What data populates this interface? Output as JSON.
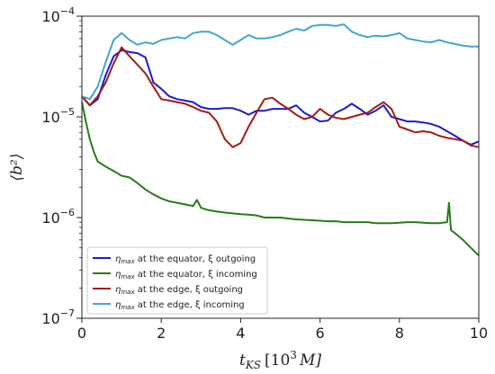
{
  "chart_data": {
    "type": "line",
    "title": "",
    "xlabel": "t_KS [10^3 M]",
    "ylabel": "⟨b²⟩",
    "xlim": [
      0,
      10
    ],
    "ylim": [
      1e-07,
      0.0001
    ],
    "yscale": "log",
    "x_ticks": [
      0,
      2,
      4,
      6,
      8,
      10
    ],
    "y_ticks": [
      {
        "value": 1e-07,
        "base": "10",
        "exp": "−7"
      },
      {
        "value": 1e-06,
        "base": "10",
        "exp": "−6"
      },
      {
        "value": 1e-05,
        "base": "10",
        "exp": "−5"
      },
      {
        "value": 0.0001,
        "base": "10",
        "exp": "−4"
      }
    ],
    "grid": false,
    "legend_position": "lower-left",
    "series": [
      {
        "name": "η_max at the equator, ξ outgoing",
        "color": "#1c1ccc",
        "x": [
          0,
          0.2,
          0.4,
          0.6,
          0.8,
          1.0,
          1.2,
          1.4,
          1.6,
          1.8,
          2.0,
          2.2,
          2.4,
          2.6,
          2.8,
          3.0,
          3.2,
          3.4,
          3.6,
          3.8,
          4.0,
          4.2,
          4.4,
          4.6,
          4.8,
          5.0,
          5.2,
          5.4,
          5.6,
          5.8,
          6.0,
          6.2,
          6.4,
          6.6,
          6.8,
          7.0,
          7.2,
          7.4,
          7.6,
          7.8,
          8.0,
          8.2,
          8.4,
          8.6,
          8.8,
          9.0,
          9.2,
          9.4,
          9.6,
          9.8,
          10.0
        ],
        "y": [
          1.6e-05,
          1.3e-05,
          1.5e-05,
          2.6e-05,
          4e-05,
          4.6e-05,
          4.4e-05,
          4.3e-05,
          3.9e-05,
          2.2e-05,
          1.9e-05,
          1.6e-05,
          1.5e-05,
          1.45e-05,
          1.4e-05,
          1.25e-05,
          1.2e-05,
          1.2e-05,
          1.22e-05,
          1.22e-05,
          1.15e-05,
          1.05e-05,
          1.15e-05,
          1.15e-05,
          1.2e-05,
          1.2e-05,
          1.2e-05,
          1.3e-05,
          1.1e-05,
          1e-05,
          9e-06,
          9.2e-06,
          1.1e-05,
          1.2e-05,
          1.35e-05,
          1.2e-05,
          1.05e-05,
          1.15e-05,
          1.3e-05,
          1e-05,
          9.5e-06,
          9e-06,
          9e-06,
          8.8e-06,
          8.5e-06,
          8e-06,
          7.2e-06,
          6.5e-06,
          5.8e-06,
          5.3e-06,
          5.7e-06
        ]
      },
      {
        "name": "η_max at the equator, ξ incoming",
        "color": "#2a7a1a",
        "x": [
          0,
          0.1,
          0.2,
          0.3,
          0.4,
          0.6,
          0.8,
          1.0,
          1.2,
          1.4,
          1.6,
          1.8,
          2.0,
          2.2,
          2.4,
          2.6,
          2.8,
          2.9,
          3.0,
          3.2,
          3.4,
          3.6,
          3.8,
          4.0,
          4.2,
          4.4,
          4.6,
          4.8,
          5.0,
          5.2,
          5.4,
          5.6,
          5.8,
          6.0,
          6.2,
          6.4,
          6.6,
          6.8,
          7.0,
          7.2,
          7.4,
          7.6,
          7.8,
          8.0,
          8.2,
          8.4,
          8.6,
          8.8,
          9.0,
          9.2,
          9.25,
          9.3,
          9.4,
          9.5,
          9.6,
          9.8,
          10.0
        ],
        "y": [
          1.4e-05,
          9e-06,
          6e-06,
          4.5e-06,
          3.6e-06,
          3.2e-06,
          2.9e-06,
          2.6e-06,
          2.5e-06,
          2.2e-06,
          1.9e-06,
          1.7e-06,
          1.55e-06,
          1.45e-06,
          1.4e-06,
          1.35e-06,
          1.3e-06,
          1.5e-06,
          1.25e-06,
          1.18e-06,
          1.15e-06,
          1.12e-06,
          1.1e-06,
          1.08e-06,
          1.07e-06,
          1.05e-06,
          1e-06,
          1e-06,
          1e-06,
          9.8e-07,
          9.6e-07,
          9.5e-07,
          9.4e-07,
          9.3e-07,
          9.2e-07,
          9.2e-07,
          9e-07,
          9e-07,
          9e-07,
          9e-07,
          8.8e-07,
          8.8e-07,
          8.8e-07,
          8.9e-07,
          9e-07,
          9e-07,
          8.9e-07,
          8.8e-07,
          8.8e-07,
          9e-07,
          1.4e-06,
          7.5e-07,
          7e-07,
          6.5e-07,
          6e-07,
          5e-07,
          4.2e-07
        ]
      },
      {
        "name": "η_max at the edge, ξ outgoing",
        "color": "#a01c14",
        "x": [
          0,
          0.2,
          0.4,
          0.6,
          0.8,
          1.0,
          1.2,
          1.4,
          1.6,
          1.8,
          2.0,
          2.2,
          2.4,
          2.6,
          2.8,
          3.0,
          3.2,
          3.4,
          3.6,
          3.8,
          4.0,
          4.2,
          4.4,
          4.6,
          4.8,
          5.0,
          5.2,
          5.4,
          5.6,
          5.8,
          6.0,
          6.2,
          6.4,
          6.6,
          6.8,
          7.0,
          7.2,
          7.4,
          7.6,
          7.8,
          8.0,
          8.2,
          8.4,
          8.6,
          8.8,
          9.0,
          9.2,
          9.4,
          9.6,
          9.8,
          10.0
        ],
        "y": [
          1.6e-05,
          1.3e-05,
          1.6e-05,
          2.2e-05,
          3.4e-05,
          4.9e-05,
          4e-05,
          3.3e-05,
          2.7e-05,
          2e-05,
          1.5e-05,
          1.45e-05,
          1.4e-05,
          1.35e-05,
          1.25e-05,
          1.15e-05,
          1.1e-05,
          9e-06,
          6e-06,
          5e-06,
          5.5e-06,
          8e-06,
          1.1e-05,
          1.5e-05,
          1.55e-05,
          1.35e-05,
          1.2e-05,
          1.05e-05,
          9.5e-06,
          1e-05,
          1.2e-05,
          1.05e-05,
          9.8e-06,
          9.5e-06,
          1e-05,
          1.05e-05,
          1.1e-05,
          1.25e-05,
          1.4e-05,
          1.2e-05,
          8e-06,
          7.5e-06,
          7e-06,
          7.2e-06,
          7e-06,
          6.5e-06,
          6.2e-06,
          6e-06,
          5.8e-06,
          5.2e-06,
          5e-06
        ]
      },
      {
        "name": "η_max at the edge, ξ incoming",
        "color": "#42a5cf",
        "x": [
          0,
          0.2,
          0.4,
          0.6,
          0.8,
          1.0,
          1.2,
          1.4,
          1.6,
          1.8,
          2.0,
          2.2,
          2.4,
          2.6,
          2.8,
          3.0,
          3.2,
          3.4,
          3.6,
          3.8,
          4.0,
          4.2,
          4.4,
          4.6,
          4.8,
          5.0,
          5.2,
          5.4,
          5.6,
          5.8,
          6.0,
          6.2,
          6.4,
          6.6,
          6.8,
          7.0,
          7.2,
          7.4,
          7.6,
          7.8,
          8.0,
          8.2,
          8.4,
          8.6,
          8.8,
          9.0,
          9.2,
          9.4,
          9.6,
          9.8,
          10.0
        ],
        "y": [
          1.6e-05,
          1.5e-05,
          2e-05,
          3.5e-05,
          5.8e-05,
          6.8e-05,
          5.8e-05,
          5.2e-05,
          5.5e-05,
          5.3e-05,
          5.8e-05,
          6e-05,
          6.2e-05,
          6e-05,
          6.8e-05,
          7e-05,
          7e-05,
          6.5e-05,
          5.8e-05,
          5.2e-05,
          5.8e-05,
          6.5e-05,
          6e-05,
          6e-05,
          6.2e-05,
          6.5e-05,
          7e-05,
          7.5e-05,
          7.2e-05,
          8e-05,
          8.2e-05,
          8.2e-05,
          8e-05,
          8.3e-05,
          7e-05,
          6.5e-05,
          6.2e-05,
          6.4e-05,
          6.3e-05,
          6.5e-05,
          6.8e-05,
          6e-05,
          5.8e-05,
          5.6e-05,
          5.5e-05,
          5.8e-05,
          5.5e-05,
          5.3e-05,
          5.1e-05,
          5e-05,
          5e-05
        ]
      }
    ]
  },
  "axes": {
    "x_title_main": "t",
    "x_title_sub": "KS",
    "x_title_bracket_open": "[10",
    "x_title_exp": "3",
    "x_title_unit": "M]",
    "y_title": "⟨b²⟩"
  },
  "legend": {
    "prefix_main": "η",
    "prefix_sub": "max",
    "items": [
      {
        "text": " at the equator, ξ outgoing",
        "color": "#1c1ccc"
      },
      {
        "text": " at the equator, ξ incoming",
        "color": "#2a7a1a"
      },
      {
        "text": " at the edge, ξ outgoing",
        "color": "#a01c14"
      },
      {
        "text": " at the edge, ξ incoming",
        "color": "#42a5cf"
      }
    ]
  }
}
